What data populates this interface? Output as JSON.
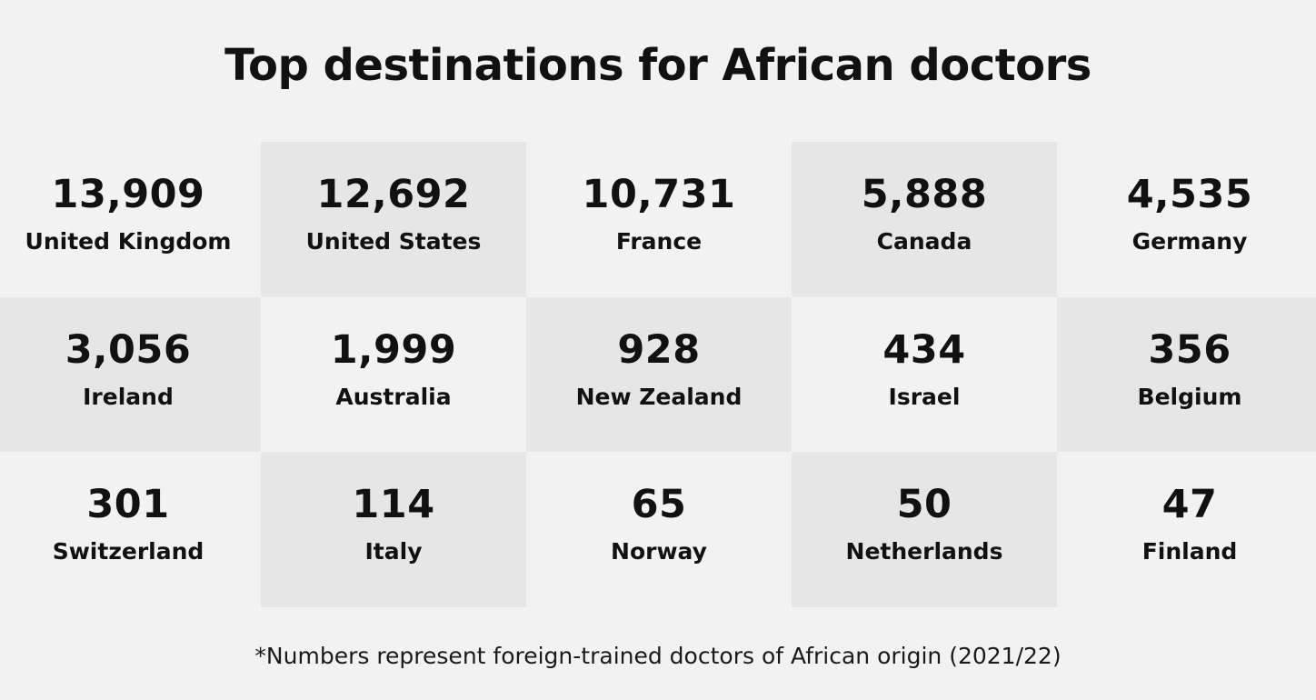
{
  "title": "Top destinations for African doctors",
  "footnote": "*Numbers represent foreign-trained doctors of African origin (2021/22)",
  "colors": {
    "background": "#f2f2f2",
    "shaded_cell": "#e6e6e6",
    "text": "#111111"
  },
  "chart_data": {
    "type": "table",
    "title": "Top destinations for African doctors",
    "categories": [
      "United Kingdom",
      "United States",
      "France",
      "Canada",
      "Germany",
      "Ireland",
      "Australia",
      "New Zealand",
      "Israel",
      "Belgium",
      "Switzerland",
      "Italy",
      "Norway",
      "Netherlands",
      "Finland"
    ],
    "values": [
      "13,909",
      "12,692",
      "10,731",
      "5,888",
      "4,535",
      "3,056",
      "1,999",
      "928",
      "434",
      "356",
      "301",
      "114",
      "65",
      "50",
      "47"
    ],
    "note": "*Numbers represent foreign-trained doctors of African origin (2021/22)"
  }
}
